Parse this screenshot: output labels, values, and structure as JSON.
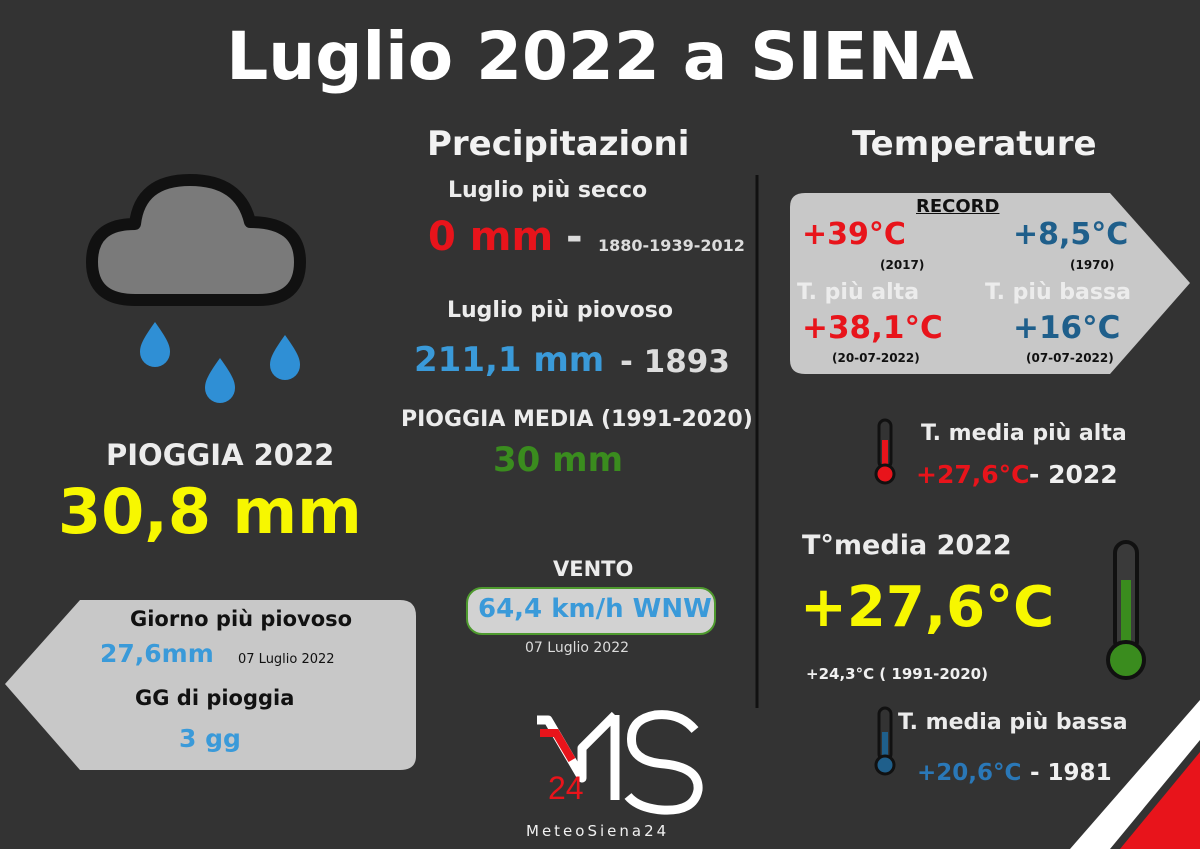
{
  "title": "Luglio 2022 a SIENA",
  "precip": {
    "heading": "Precipitazioni",
    "driest_label": "Luglio più secco",
    "driest_value": "0 mm",
    "driest_dash": "-",
    "driest_years": "1880-1939-2012",
    "wettest_label": "Luglio più piovoso",
    "wettest_value": "211,1 mm",
    "wettest_year": "- 1893",
    "avg_label": "PIOGGIA MEDIA (1991-2020)",
    "avg_value": "30 mm"
  },
  "wind": {
    "label": "VENTO",
    "value": "64,4 km/h WNW",
    "date": "07 Luglio 2022"
  },
  "rain": {
    "label": "PIOGGIA 2022",
    "value": "30,8 mm",
    "wettest_day_label": "Giorno più piovoso",
    "wettest_day_value": "27,6mm",
    "wettest_day_date": "07 Luglio  2022",
    "rain_days_label": "GG di pioggia",
    "rain_days_value": "3 gg"
  },
  "temp": {
    "heading": "Temperature",
    "record_label": "RECORD",
    "record_max": "+39°C",
    "record_max_year": "(2017)",
    "record_min": "+8,5°C",
    "record_min_year": "(1970)",
    "high_label": "T. più alta",
    "high_value": "+38,1°C",
    "high_date": "(20-07-2022)",
    "low_label": "T. più bassa",
    "low_value": "+16°C",
    "low_date": "(07-07-2022)",
    "mean_high_label": "T. media più alta",
    "mean_high_value": "+27,6°C",
    "mean_high_year": "- 2022",
    "mean_2022_label": "T°media 2022",
    "mean_2022_value": "+27,6°C",
    "mean_normal": "+24,3°C ( 1991-2020)",
    "mean_low_label": "T. media più bassa",
    "mean_low_value": "+20,6°C",
    "mean_low_year": "- 1981"
  },
  "logo": {
    "letters": "MS",
    "number": "24",
    "brand": "MeteoSiena24"
  },
  "colors": {
    "background": "#333333",
    "red": "#e8141b",
    "blue": "#3a9ad9",
    "green": "#3a8c1e",
    "yellow": "#f7f700"
  },
  "icons": [
    "rain-cloud-icon",
    "thermometer-red-icon",
    "thermometer-green-icon",
    "thermometer-blue-icon"
  ]
}
